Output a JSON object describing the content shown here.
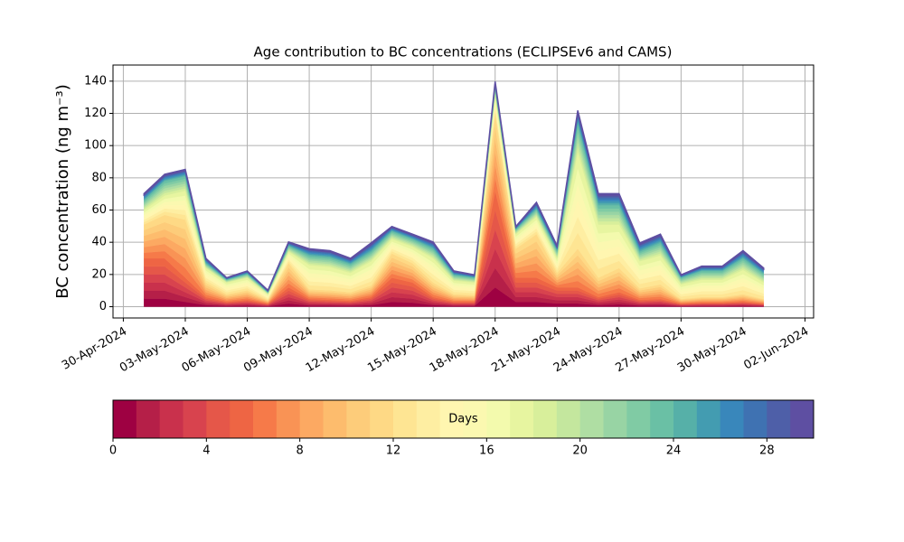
{
  "chart_data": {
    "type": "stacked_area",
    "title": "Age contribution to BC concentrations (ECLIPSEv6 and CAMS)",
    "y_label": "BC concentration (ng m⁻³)",
    "x": [
      "2024-05-01",
      "2024-05-02",
      "2024-05-03",
      "2024-05-04",
      "2024-05-05",
      "2024-05-06",
      "2024-05-07",
      "2024-05-08",
      "2024-05-09",
      "2024-05-10",
      "2024-05-11",
      "2024-05-12",
      "2024-05-13",
      "2024-05-14",
      "2024-05-15",
      "2024-05-16",
      "2024-05-17",
      "2024-05-18",
      "2024-05-19",
      "2024-05-20",
      "2024-05-21",
      "2024-05-22",
      "2024-05-23",
      "2024-05-24",
      "2024-05-25",
      "2024-05-26",
      "2024-05-27",
      "2024-05-28",
      "2024-05-29",
      "2024-05-30",
      "2024-05-31"
    ],
    "xlim": [
      "2024-04-29T12:00:00Z",
      "2024-06-02T10:00:00Z"
    ],
    "xticks": [
      {
        "value": "2024-04-30",
        "label": "30-Apr-2024"
      },
      {
        "value": "2024-05-03",
        "label": "03-May-2024"
      },
      {
        "value": "2024-05-06",
        "label": "06-May-2024"
      },
      {
        "value": "2024-05-09",
        "label": "09-May-2024"
      },
      {
        "value": "2024-05-12",
        "label": "12-May-2024"
      },
      {
        "value": "2024-05-15",
        "label": "15-May-2024"
      },
      {
        "value": "2024-05-18",
        "label": "18-May-2024"
      },
      {
        "value": "2024-05-21",
        "label": "21-May-2024"
      },
      {
        "value": "2024-05-24",
        "label": "24-May-2024"
      },
      {
        "value": "2024-05-27",
        "label": "27-May-2024"
      },
      {
        "value": "2024-05-30",
        "label": "30-May-2024"
      },
      {
        "value": "2024-06-02",
        "label": "02-Jun-2024"
      }
    ],
    "ylim": [
      -7,
      150
    ],
    "yticks": [
      0,
      20,
      40,
      60,
      80,
      100,
      120,
      140
    ],
    "grid": true,
    "series": [
      {
        "color": "#9e0142",
        "values": [
          5,
          5,
          3,
          1,
          0.5,
          0.7,
          0.3,
          2,
          0.8,
          0.7,
          0.6,
          1,
          3,
          2.5,
          1,
          0.5,
          0.5,
          12,
          3,
          3,
          2,
          2,
          1,
          1.5,
          0.7,
          0.8,
          0.3,
          0.4,
          0.4,
          0.5,
          0.3
        ]
      },
      {
        "color": "#b51f48",
        "values": [
          5,
          5,
          3,
          1,
          0.5,
          0.7,
          0.3,
          2,
          0.8,
          0.7,
          0.6,
          1,
          3,
          2.5,
          1,
          0.5,
          0.5,
          12,
          3,
          3,
          2,
          2,
          1,
          1.5,
          0.7,
          0.8,
          0.3,
          0.4,
          0.4,
          0.5,
          0.3
        ]
      },
      {
        "color": "#c9314c",
        "values": [
          5,
          5,
          3,
          1,
          0.5,
          0.7,
          0.3,
          2,
          0.8,
          0.7,
          0.6,
          1,
          3,
          2.5,
          1,
          0.5,
          0.5,
          12,
          3,
          3,
          2,
          2,
          1,
          1.5,
          0.7,
          0.8,
          0.3,
          0.4,
          0.4,
          0.5,
          0.3
        ]
      },
      {
        "color": "#d8434e",
        "values": [
          5,
          5,
          3,
          1,
          0.5,
          0.7,
          0.3,
          2,
          0.8,
          0.7,
          0.6,
          1,
          3,
          2.5,
          1,
          0.5,
          0.5,
          12,
          3,
          3,
          2,
          2,
          1,
          1.5,
          0.7,
          0.8,
          0.3,
          0.4,
          0.4,
          0.5,
          0.3
        ]
      },
      {
        "color": "#e55749",
        "values": [
          5,
          5,
          3,
          1,
          0.5,
          0.7,
          0.3,
          2,
          0.8,
          0.7,
          0.6,
          1,
          3,
          2.5,
          1,
          0.5,
          0.5,
          12,
          3,
          3,
          2,
          2,
          1,
          1.5,
          0.7,
          0.8,
          0.3,
          0.4,
          0.4,
          0.5,
          0.3
        ]
      },
      {
        "color": "#ee6544",
        "values": [
          5,
          5,
          3,
          1,
          0.5,
          0.7,
          0.3,
          2,
          0.8,
          0.7,
          0.6,
          1,
          3,
          2.5,
          1,
          0.5,
          0.5,
          12,
          3,
          3,
          2,
          2,
          1,
          1.5,
          0.7,
          0.8,
          0.3,
          0.4,
          0.4,
          0.5,
          0.3
        ]
      },
      {
        "color": "#f67a49",
        "values": [
          3.5,
          4.5,
          6,
          1.5,
          0.8,
          1,
          0.4,
          2.5,
          1,
          1,
          0.9,
          1.2,
          2.5,
          2,
          1.5,
          0.8,
          0.7,
          8,
          3,
          4.5,
          1.5,
          4,
          2,
          2.5,
          1.2,
          1.5,
          0.5,
          0.6,
          0.6,
          0.8,
          0.5
        ]
      },
      {
        "color": "#f99355",
        "values": [
          3.5,
          4.5,
          6,
          1.5,
          0.8,
          1,
          0.4,
          2.5,
          1,
          1,
          0.9,
          1.2,
          2.5,
          2,
          1.5,
          0.8,
          0.7,
          8,
          3,
          4.5,
          1.5,
          4,
          2,
          2.5,
          1.2,
          1.5,
          0.5,
          0.6,
          0.6,
          0.8,
          0.5
        ]
      },
      {
        "color": "#fca962",
        "values": [
          3.5,
          4.5,
          6,
          1.5,
          0.8,
          1,
          0.4,
          2.5,
          1,
          1,
          0.9,
          1.2,
          2.5,
          2,
          1.5,
          0.8,
          0.7,
          8,
          3,
          4.5,
          1.5,
          4,
          2,
          2.5,
          1.2,
          1.5,
          0.5,
          0.6,
          0.6,
          0.8,
          0.5
        ]
      },
      {
        "color": "#fdbc6d",
        "values": [
          3.5,
          4.5,
          6,
          1.5,
          0.8,
          1,
          0.4,
          2.5,
          1,
          1,
          0.9,
          1.2,
          2.5,
          2,
          1.5,
          0.8,
          0.7,
          8,
          3,
          4.5,
          1.5,
          4,
          2,
          2.5,
          1.2,
          1.5,
          0.5,
          0.6,
          0.6,
          0.8,
          0.5
        ]
      },
      {
        "color": "#fdcc7a",
        "values": [
          3.5,
          4.5,
          6,
          1.5,
          0.8,
          1,
          0.4,
          2.5,
          1,
          1,
          0.9,
          1.2,
          2.5,
          2,
          1.5,
          0.8,
          0.7,
          8,
          3,
          4.5,
          1.5,
          4,
          2,
          2.5,
          1.2,
          1.5,
          0.5,
          0.6,
          0.6,
          0.8,
          0.5
        ]
      },
      {
        "color": "#fed985",
        "values": [
          3.5,
          4.5,
          6,
          1.5,
          0.8,
          1,
          0.4,
          2.5,
          1,
          1,
          0.9,
          1.2,
          2.5,
          2,
          1.5,
          0.8,
          0.7,
          8,
          3,
          4.5,
          1.5,
          4,
          2,
          2.5,
          1.2,
          1.5,
          0.5,
          0.6,
          0.6,
          0.8,
          0.5
        ]
      },
      {
        "color": "#fee593",
        "values": [
          1.5,
          2,
          3,
          1.5,
          1.2,
          1.3,
          0.6,
          1.2,
          2.5,
          2.4,
          2,
          2.5,
          1.5,
          1.7,
          2.5,
          1.4,
          1.3,
          2,
          1.5,
          1.8,
          1.5,
          10,
          5.5,
          4.5,
          2.8,
          3,
          1.5,
          1.8,
          1.8,
          2.5,
          1.7
        ]
      },
      {
        "color": "#feeea2",
        "values": [
          1.5,
          2,
          3,
          1.5,
          1.2,
          1.3,
          0.6,
          1.2,
          2.5,
          2.4,
          2,
          2.5,
          1.5,
          1.7,
          2.5,
          1.4,
          1.3,
          2,
          1.5,
          1.8,
          1.5,
          10,
          5.5,
          4.5,
          2.8,
          3,
          1.5,
          1.8,
          1.8,
          2.5,
          1.7
        ]
      },
      {
        "color": "#fff6b0",
        "values": [
          1.5,
          2,
          3,
          1.5,
          1.2,
          1.3,
          0.6,
          1.2,
          2.5,
          2.4,
          2,
          2.5,
          1.5,
          1.7,
          2.5,
          1.4,
          1.3,
          2,
          1.5,
          1.8,
          1.5,
          10,
          5.5,
          4.5,
          2.8,
          3,
          1.5,
          1.8,
          1.8,
          2.5,
          1.7
        ]
      },
      {
        "color": "#fbf8b0",
        "values": [
          1.5,
          2,
          3,
          1.5,
          1.2,
          1.3,
          0.6,
          1.2,
          2.5,
          2.4,
          2,
          2.5,
          1.5,
          1.7,
          2.5,
          1.4,
          1.3,
          2,
          1.5,
          1.8,
          1.5,
          10,
          5.5,
          4.5,
          2.8,
          3,
          1.5,
          1.8,
          1.8,
          2.5,
          1.7
        ]
      },
      {
        "color": "#f3faad",
        "values": [
          1.5,
          2,
          3,
          1.5,
          1.2,
          1.3,
          0.6,
          1.2,
          2.5,
          2.4,
          2,
          2.5,
          1.5,
          1.7,
          2.5,
          1.4,
          1.3,
          2,
          1.5,
          1.8,
          1.5,
          10,
          5.5,
          4.5,
          2.8,
          3,
          1.5,
          1.8,
          1.8,
          2.5,
          1.7
        ]
      },
      {
        "color": "#e7f5a0",
        "values": [
          1.5,
          2,
          3,
          1.5,
          1.2,
          1.3,
          0.6,
          1.2,
          2.5,
          2.4,
          2,
          2.5,
          1.5,
          1.7,
          2.5,
          1.4,
          1.3,
          2,
          1.5,
          1.8,
          1.5,
          10,
          5.5,
          4.5,
          2.8,
          3,
          1.5,
          1.8,
          1.8,
          2.5,
          1.7
        ]
      },
      {
        "color": "#d8ef9b",
        "values": [
          1,
          1.5,
          1.5,
          0.5,
          0.3,
          0.4,
          0.2,
          0.6,
          1,
          1,
          0.9,
          1,
          0.8,
          0.8,
          1,
          0.6,
          0.5,
          0.7,
          0.5,
          0.8,
          0.8,
          3,
          2,
          2,
          1,
          1.3,
          0.7,
          0.9,
          0.9,
          1.2,
          0.9
        ]
      },
      {
        "color": "#c4e79e",
        "values": [
          1,
          1.5,
          1.5,
          0.5,
          0.3,
          0.4,
          0.2,
          0.6,
          1,
          1,
          0.9,
          1,
          0.8,
          0.8,
          1,
          0.6,
          0.5,
          0.7,
          0.5,
          0.8,
          0.8,
          3,
          2,
          2,
          1,
          1.3,
          0.7,
          0.9,
          0.9,
          1.2,
          0.9
        ]
      },
      {
        "color": "#afdea3",
        "values": [
          1,
          1.5,
          1.5,
          0.5,
          0.3,
          0.4,
          0.2,
          0.6,
          1,
          1,
          0.9,
          1,
          0.8,
          0.8,
          1,
          0.6,
          0.5,
          0.7,
          0.5,
          0.8,
          0.8,
          3,
          2,
          2,
          1,
          1.3,
          0.7,
          0.9,
          0.9,
          1.2,
          0.9
        ]
      },
      {
        "color": "#98d4a4",
        "values": [
          1,
          1.5,
          1.5,
          0.5,
          0.3,
          0.4,
          0.2,
          0.6,
          1,
          1,
          0.9,
          1,
          0.8,
          0.8,
          1,
          0.6,
          0.5,
          0.7,
          0.5,
          0.8,
          0.8,
          3,
          2,
          2,
          1,
          1.3,
          0.7,
          0.9,
          0.9,
          1.2,
          0.9
        ]
      },
      {
        "color": "#80cba4",
        "values": [
          1,
          1.5,
          1.5,
          0.5,
          0.3,
          0.4,
          0.2,
          0.6,
          1,
          1,
          0.9,
          1,
          0.8,
          0.8,
          1,
          0.6,
          0.5,
          0.7,
          0.5,
          0.8,
          0.8,
          3,
          2,
          2,
          1,
          1.3,
          0.7,
          0.9,
          0.9,
          1.2,
          0.9
        ]
      },
      {
        "color": "#6ac0a5",
        "values": [
          1,
          1.5,
          1.5,
          0.5,
          0.3,
          0.4,
          0.2,
          0.6,
          1,
          1,
          0.9,
          1,
          0.8,
          0.8,
          1,
          0.6,
          0.5,
          0.7,
          0.5,
          0.8,
          0.8,
          3,
          2,
          2,
          1,
          1.3,
          0.7,
          0.9,
          0.9,
          1.2,
          0.9
        ]
      },
      {
        "color": "#56b0a8",
        "values": [
          0.7,
          0.7,
          0.7,
          0.5,
          0.2,
          0.3,
          0.2,
          0.4,
          0.7,
          0.7,
          0.6,
          0.9,
          0.5,
          0.5,
          0.7,
          0.4,
          0.3,
          0.6,
          0.3,
          0.7,
          0.5,
          1.3,
          1.2,
          1.2,
          0.9,
          0.9,
          0.3,
          0.5,
          0.5,
          0.8,
          0.6
        ]
      },
      {
        "color": "#439cb1",
        "values": [
          0.7,
          0.7,
          0.7,
          0.5,
          0.2,
          0.3,
          0.2,
          0.4,
          0.7,
          0.7,
          0.6,
          0.9,
          0.5,
          0.5,
          0.7,
          0.4,
          0.3,
          0.6,
          0.3,
          0.7,
          0.5,
          1.3,
          1.2,
          1.2,
          0.9,
          0.9,
          0.3,
          0.5,
          0.5,
          0.8,
          0.6
        ]
      },
      {
        "color": "#3987bb",
        "values": [
          0.7,
          0.7,
          0.7,
          0.5,
          0.2,
          0.3,
          0.2,
          0.4,
          0.7,
          0.7,
          0.6,
          0.9,
          0.5,
          0.5,
          0.7,
          0.4,
          0.3,
          0.6,
          0.3,
          0.7,
          0.5,
          1.3,
          1.2,
          1.2,
          0.9,
          0.9,
          0.3,
          0.5,
          0.5,
          0.8,
          0.6
        ]
      },
      {
        "color": "#3f72b2",
        "values": [
          0.7,
          0.7,
          0.7,
          0.5,
          0.2,
          0.3,
          0.2,
          0.4,
          0.7,
          0.7,
          0.6,
          0.9,
          0.5,
          0.5,
          0.7,
          0.4,
          0.3,
          0.6,
          0.3,
          0.7,
          0.5,
          1.3,
          1.2,
          1.2,
          0.9,
          0.9,
          0.3,
          0.5,
          0.5,
          0.8,
          0.6
        ]
      },
      {
        "color": "#4e5fa8",
        "values": [
          0.7,
          0.7,
          0.7,
          0.5,
          0.2,
          0.3,
          0.2,
          0.4,
          0.7,
          0.7,
          0.6,
          0.9,
          0.5,
          0.5,
          0.7,
          0.4,
          0.3,
          0.6,
          0.3,
          0.7,
          0.5,
          1.3,
          1.2,
          1.2,
          0.9,
          0.9,
          0.3,
          0.5,
          0.5,
          0.8,
          0.6
        ]
      },
      {
        "color": "#5e4fa2",
        "values": [
          0.7,
          0.7,
          0.7,
          0.5,
          0.2,
          0.3,
          0.2,
          0.4,
          0.7,
          0.7,
          0.6,
          0.9,
          0.5,
          0.5,
          0.7,
          0.4,
          0.3,
          0.6,
          0.3,
          0.7,
          0.5,
          1.3,
          1.2,
          1.2,
          0.9,
          0.9,
          0.3,
          0.5,
          0.5,
          0.8,
          0.6
        ]
      }
    ],
    "colorbar": {
      "label": "Days",
      "lim": [
        0,
        30
      ],
      "ticks": [
        0,
        4,
        8,
        12,
        16,
        20,
        24,
        28
      ]
    }
  }
}
